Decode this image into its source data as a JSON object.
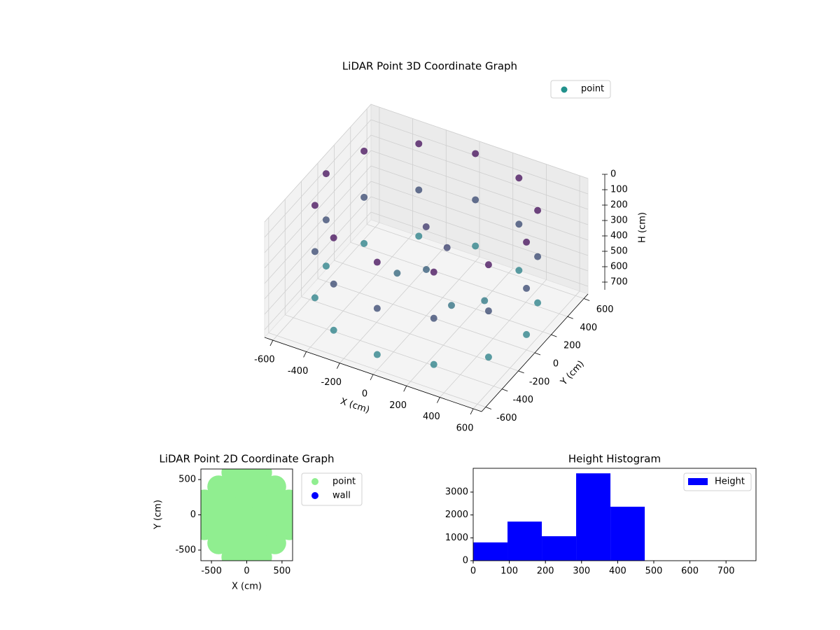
{
  "chart_data": [
    {
      "type": "scatter3d",
      "title": "LiDAR Point 3D Coordinate Graph",
      "xlabel": "X (cm)",
      "ylabel": "Y (cm)",
      "zlabel": "H (cm)",
      "xlim": [
        -650,
        650
      ],
      "ylim": [
        -650,
        650
      ],
      "zlim": [
        750,
        0
      ],
      "xticks": [
        -600,
        -400,
        -200,
        0,
        200,
        400,
        600
      ],
      "yticks": [
        -600,
        -400,
        -200,
        0,
        200,
        400,
        600
      ],
      "zticks": [
        0,
        100,
        200,
        300,
        400,
        500,
        600,
        700
      ],
      "grid": true,
      "legend": "upper right",
      "series": [
        {
          "name": "point",
          "color": "#21918c",
          "colormap": [
            "#440154",
            "#21918c"
          ],
          "x": [
            600,
            520,
            300,
            0,
            -300,
            -520,
            -600,
            -520,
            -300,
            0,
            300,
            520,
            600,
            520,
            300,
            0,
            -300,
            -520,
            -600,
            -520,
            -300,
            0,
            300,
            520,
            600,
            520,
            300,
            0,
            -300,
            -520,
            -600,
            -520,
            -300,
            0,
            300,
            520,
            100,
            -50,
            200,
            0,
            -150,
            300
          ],
          "y": [
            0,
            300,
            520,
            600,
            520,
            300,
            0,
            -300,
            -520,
            -600,
            -520,
            -300,
            0,
            300,
            520,
            600,
            520,
            300,
            0,
            -300,
            -520,
            -600,
            -520,
            -300,
            0,
            300,
            520,
            600,
            520,
            300,
            0,
            -300,
            -520,
            -600,
            -520,
            -300,
            50,
            100,
            -100,
            0,
            -50,
            100
          ],
          "z": [
            50,
            50,
            50,
            50,
            50,
            50,
            50,
            50,
            50,
            50,
            50,
            50,
            350,
            350,
            350,
            350,
            350,
            350,
            350,
            350,
            350,
            350,
            350,
            350,
            650,
            650,
            650,
            650,
            650,
            650,
            650,
            650,
            650,
            650,
            650,
            650,
            300,
            250,
            550,
            450,
            500,
            600
          ]
        }
      ]
    },
    {
      "type": "scatter",
      "title": "LiDAR Point 2D Coordinate Graph",
      "xlabel": "X (cm)",
      "ylabel": "Y (cm)",
      "xlim": [
        -650,
        650
      ],
      "ylim": [
        -650,
        650
      ],
      "xticks": [
        -500,
        0,
        500
      ],
      "yticks": [
        -500,
        0,
        500
      ],
      "legend": "outside right",
      "series": [
        {
          "name": "point",
          "color": "#90ee90",
          "x": [
            -600,
            -600,
            -600,
            -400,
            -400,
            -400,
            -400,
            -400,
            -200,
            -200,
            -200,
            -200,
            -200,
            -200,
            -200,
            0,
            0,
            0,
            0,
            0,
            0,
            0,
            200,
            200,
            200,
            200,
            200,
            200,
            200,
            400,
            400,
            400,
            400,
            400,
            600,
            600,
            600
          ],
          "y": [
            -200,
            0,
            200,
            -400,
            -200,
            0,
            200,
            400,
            -600,
            -400,
            -200,
            0,
            200,
            400,
            600,
            -600,
            -400,
            -200,
            0,
            200,
            400,
            600,
            -600,
            -400,
            -200,
            0,
            200,
            400,
            600,
            -400,
            -200,
            0,
            200,
            400,
            -200,
            0,
            200
          ]
        },
        {
          "name": "wall",
          "color": "#0000ff",
          "x": [],
          "y": []
        }
      ]
    },
    {
      "type": "histogram",
      "title": "Height Histogram",
      "name": "Height",
      "color": "#0000ff",
      "bins": [
        0,
        95,
        190,
        285,
        380,
        475,
        570,
        665,
        760
      ],
      "values": [
        800,
        1710,
        1070,
        3820,
        2360,
        0,
        0,
        0
      ],
      "xlim": [
        0,
        783
      ],
      "ylim": [
        0,
        4040
      ],
      "xticks": [
        0,
        100,
        200,
        300,
        400,
        500,
        600,
        700
      ],
      "yticks": [
        0,
        1000,
        2000,
        3000
      ],
      "legend": "upper right"
    }
  ]
}
